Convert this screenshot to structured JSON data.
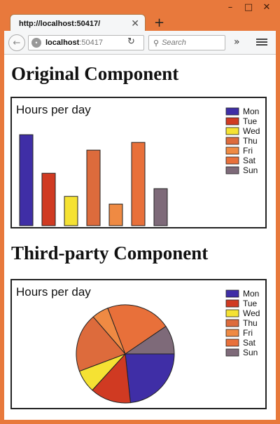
{
  "browser": {
    "tab_title": "http://localhost:50417/",
    "url_host": "localhost",
    "url_port": ":50417",
    "search_placeholder": "Search",
    "window_controls": [
      "minimize",
      "maximize",
      "close"
    ]
  },
  "page": {
    "heading1": "Original Component",
    "heading2": "Third-party Component"
  },
  "chart_data": [
    {
      "type": "bar",
      "title": "Hours per day",
      "categories": [
        "Mon",
        "Tue",
        "Wed",
        "Thu",
        "Fri",
        "Sat",
        "Sun"
      ],
      "values": [
        11.8,
        6.8,
        3.8,
        9.8,
        2.8,
        10.8,
        4.8
      ],
      "colors": [
        "#3f2ea6",
        "#d03a22",
        "#f5e233",
        "#dd6b3c",
        "#ef8a43",
        "#e8703a",
        "#7e6a79"
      ],
      "ylim": [
        0,
        15
      ],
      "legend": "top-right"
    },
    {
      "type": "pie",
      "title": "Hours per day",
      "categories": [
        "Mon",
        "Tue",
        "Wed",
        "Thu",
        "Fri",
        "Sat",
        "Sun"
      ],
      "values": [
        11.8,
        6.8,
        3.8,
        9.8,
        2.8,
        10.8,
        4.8
      ],
      "colors": [
        "#3f2ea6",
        "#d03a22",
        "#f5e233",
        "#dd6b3c",
        "#ef8a43",
        "#e8703a",
        "#7e6a79"
      ],
      "legend": "top-right"
    }
  ]
}
